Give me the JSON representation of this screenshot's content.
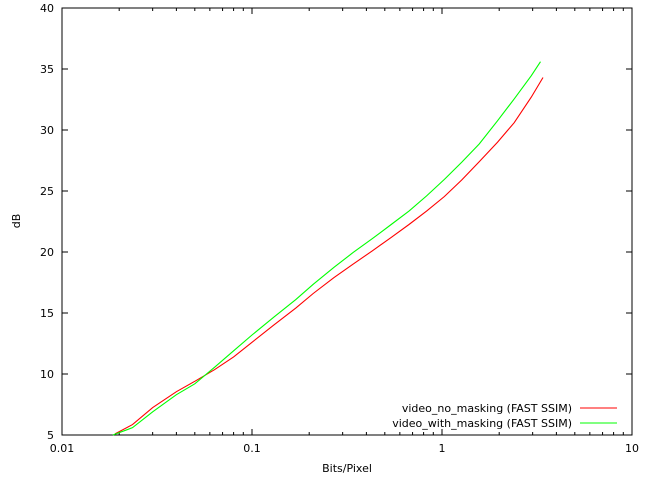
{
  "chart_data": {
    "type": "line",
    "title": "",
    "xlabel": "Bits/Pixel",
    "ylabel": "dB",
    "xscale": "log",
    "xlim": [
      0.01,
      10
    ],
    "ylim": [
      5,
      40
    ],
    "x_ticks": [
      0.01,
      0.1,
      1,
      10
    ],
    "x_tick_labels": [
      "0.01",
      "0.1",
      "1",
      "10"
    ],
    "y_ticks": [
      5,
      10,
      15,
      20,
      25,
      30,
      35,
      40
    ],
    "y_tick_labels": [
      "5",
      "10",
      "15",
      "20",
      "25",
      "30",
      "35",
      "40"
    ],
    "grid": false,
    "legend_position": "bottom-right",
    "series": [
      {
        "name": "video_no_masking (FAST SSIM)",
        "color": "#ff0000",
        "points": [
          [
            0.019,
            5.1
          ],
          [
            0.0235,
            5.85
          ],
          [
            0.03,
            7.25
          ],
          [
            0.04,
            8.55
          ],
          [
            0.05,
            9.4
          ],
          [
            0.0635,
            10.35
          ],
          [
            0.08,
            11.4
          ],
          [
            0.1,
            12.6
          ],
          [
            0.13,
            14.0
          ],
          [
            0.17,
            15.4
          ],
          [
            0.21,
            16.6
          ],
          [
            0.27,
            17.9
          ],
          [
            0.34,
            19.0
          ],
          [
            0.43,
            20.1
          ],
          [
            0.54,
            21.2
          ],
          [
            0.67,
            22.25
          ],
          [
            0.83,
            23.35
          ],
          [
            1.03,
            24.55
          ],
          [
            1.27,
            25.9
          ],
          [
            1.57,
            27.4
          ],
          [
            1.96,
            29.0
          ],
          [
            2.4,
            30.6
          ],
          [
            2.95,
            32.7
          ],
          [
            3.4,
            34.3
          ]
        ]
      },
      {
        "name": "video_with_masking (FAST SSIM)",
        "color": "#00ff00",
        "points": [
          [
            0.0185,
            5.0
          ],
          [
            0.0235,
            5.6
          ],
          [
            0.03,
            6.9
          ],
          [
            0.04,
            8.3
          ],
          [
            0.05,
            9.2
          ],
          [
            0.0635,
            10.55
          ],
          [
            0.08,
            11.9
          ],
          [
            0.1,
            13.2
          ],
          [
            0.13,
            14.65
          ],
          [
            0.17,
            16.1
          ],
          [
            0.21,
            17.35
          ],
          [
            0.27,
            18.75
          ],
          [
            0.34,
            19.95
          ],
          [
            0.43,
            21.1
          ],
          [
            0.54,
            22.25
          ],
          [
            0.67,
            23.35
          ],
          [
            0.83,
            24.6
          ],
          [
            1.03,
            25.95
          ],
          [
            1.27,
            27.35
          ],
          [
            1.57,
            28.85
          ],
          [
            1.96,
            30.75
          ],
          [
            2.4,
            32.55
          ],
          [
            2.95,
            34.45
          ],
          [
            3.3,
            35.6
          ]
        ]
      }
    ]
  }
}
